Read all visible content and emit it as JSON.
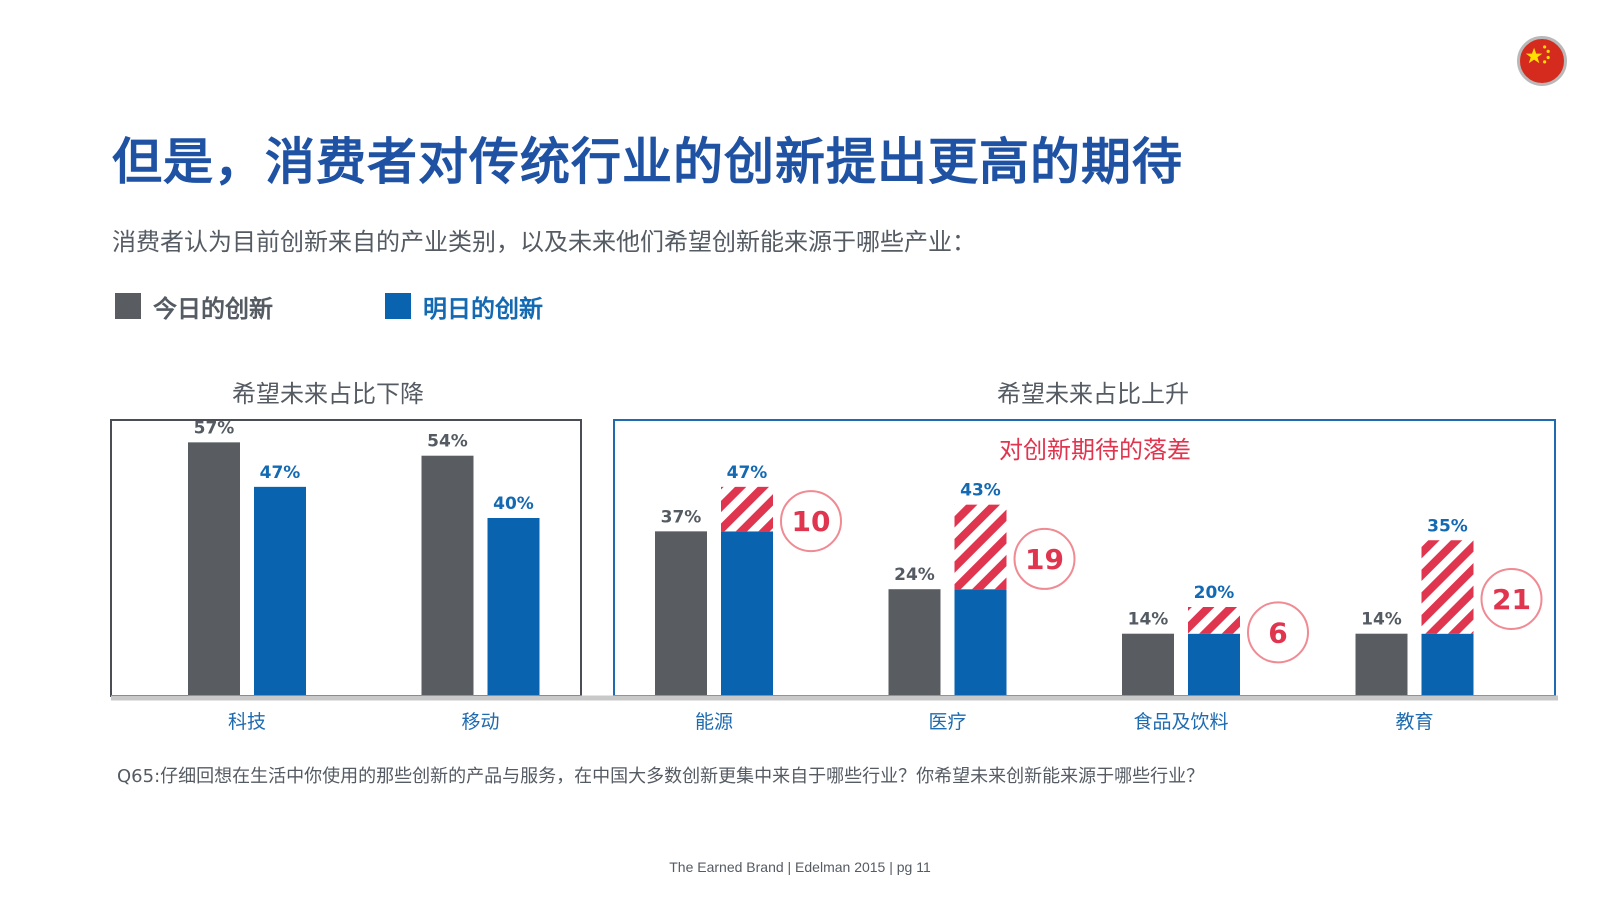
{
  "page": {
    "title": "但是，消费者对传统行业的创新提出更高的期待",
    "subtitle": "消费者认为目前创新来自的产业类别，以及未来他们希望创新能来源于哪些产业：",
    "footnote": "Q65:仔细回想在生活中你使用的那些创新的产品与服务，在中国大多数创新更集中来自于哪些行业？你希望未来创新能来源于哪些行业？",
    "footer": "The Earned Brand | Edelman 2015 | pg 11"
  },
  "legend": {
    "today": "今日的创新",
    "tomorrow": "明日的创新"
  },
  "colors": {
    "title": "#1f52a3",
    "today": "#595d62",
    "tomorrow": "#0a63af",
    "gap": "#e0354f",
    "gap_circle": "#f08a93",
    "axis": "#c8c8c8",
    "category_label": "#1f6bb0"
  },
  "chart_data": {
    "type": "bar",
    "categories": [
      "科技",
      "移动",
      "能源",
      "医疗",
      "食品及饮料",
      "教育"
    ],
    "series": [
      {
        "name": "今日的创新",
        "values": [
          57,
          54,
          37,
          24,
          14,
          14
        ]
      },
      {
        "name": "明日的创新",
        "values": [
          47,
          40,
          47,
          43,
          20,
          35
        ]
      }
    ],
    "value_labels": {
      "today": [
        "57%",
        "54%",
        "37%",
        "24%",
        "14%",
        "14%"
      ],
      "tomorrow": [
        "47%",
        "40%",
        "47%",
        "43%",
        "20%",
        "35%"
      ]
    },
    "groups": [
      {
        "title": "希望未来占比下降",
        "categories": [
          "科技",
          "移动"
        ]
      },
      {
        "title": "希望未来占比上升",
        "categories": [
          "能源",
          "医疗",
          "食品及饮料",
          "教育"
        ],
        "annotation": "对创新期待的落差"
      }
    ],
    "gaps": [
      {
        "category": "能源",
        "label": "10"
      },
      {
        "category": "医疗",
        "label": "19"
      },
      {
        "category": "食品及饮料",
        "label": "6"
      },
      {
        "category": "教育",
        "label": "21"
      }
    ],
    "ylim": [
      0,
      60
    ]
  }
}
